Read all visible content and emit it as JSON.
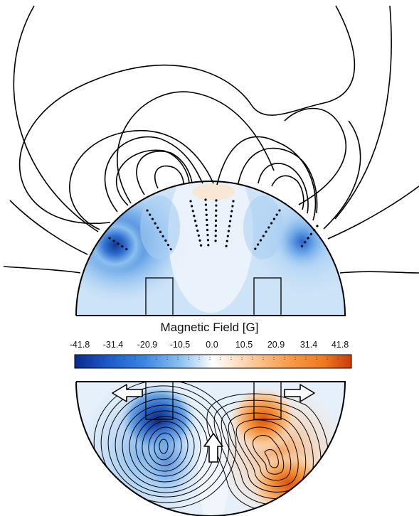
{
  "colorbar": {
    "title": "Magnetic Field [G]",
    "min": -41.8,
    "max": 41.8,
    "ticks": [
      "-41.8",
      "-31.4",
      "-20.9",
      "-10.5",
      "0.0",
      "10.5",
      "20.9",
      "31.4",
      "41.8"
    ],
    "colors": [
      "#0a2a8a",
      "#1e5ac8",
      "#3a86e0",
      "#7fb6ee",
      "#cfe4f8",
      "#ffffff",
      "#fde0c4",
      "#f8b272",
      "#f07e24",
      "#c83c0a"
    ]
  },
  "colors": {
    "line": "#000000",
    "blue_strong": "#1e4fb5",
    "blue_mid": "#5b9ee6",
    "blue_light": "#cfe3f7",
    "orange_strong": "#ef7a20",
    "orange_light": "#fbd2a8"
  },
  "icons": [
    "flow-arrow-left-icon",
    "flow-arrow-up-icon",
    "flow-arrow-right-icon"
  ]
}
